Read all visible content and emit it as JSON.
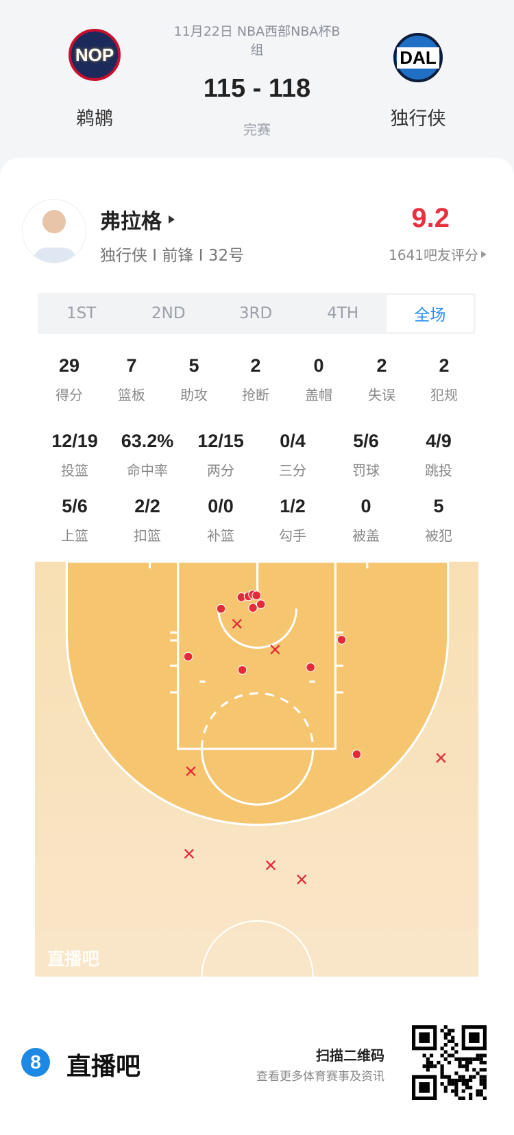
{
  "match": {
    "date_line1": "11月22日 NBA西部NBA杯B",
    "date_line2": "组",
    "score": "115 - 118",
    "status": "完赛",
    "home": {
      "abbr": "NOP",
      "name": "鹈鹕"
    },
    "away": {
      "abbr": "DAL",
      "name": "独行侠"
    }
  },
  "player": {
    "name": "弗拉格",
    "info": "独行侠 I 前锋 I 32号",
    "rating": "9.2",
    "rating_label": "1641吧友评分",
    "rating_color": "#e8303f"
  },
  "tabs": [
    {
      "label": "1ST"
    },
    {
      "label": "2ND"
    },
    {
      "label": "3RD"
    },
    {
      "label": "4TH"
    },
    {
      "label": "全场",
      "selected": true
    }
  ],
  "stats_row1": [
    {
      "v": "29",
      "l": "得分"
    },
    {
      "v": "7",
      "l": "篮板"
    },
    {
      "v": "5",
      "l": "助攻"
    },
    {
      "v": "2",
      "l": "抢断"
    },
    {
      "v": "0",
      "l": "盖帽"
    },
    {
      "v": "2",
      "l": "失误"
    },
    {
      "v": "2",
      "l": "犯规"
    }
  ],
  "stats_row2": [
    {
      "v": "12/19",
      "l": "投篮"
    },
    {
      "v": "63.2%",
      "l": "命中率"
    },
    {
      "v": "12/15",
      "l": "两分"
    },
    {
      "v": "0/4",
      "l": "三分"
    },
    {
      "v": "5/6",
      "l": "罚球"
    },
    {
      "v": "4/9",
      "l": "跳投"
    }
  ],
  "stats_row3": [
    {
      "v": "5/6",
      "l": "上篮"
    },
    {
      "v": "2/2",
      "l": "扣篮"
    },
    {
      "v": "0/0",
      "l": "补篮"
    },
    {
      "v": "1/2",
      "l": "勾手"
    },
    {
      "v": "0",
      "l": "被盖"
    },
    {
      "v": "5",
      "l": "被犯"
    }
  ],
  "shot_chart": {
    "watermark": "直播吧",
    "units": "feet (x from basket, y from baseline)",
    "made": [
      [
        -1.8,
        4.0
      ],
      [
        -1.0,
        3.9
      ],
      [
        -0.5,
        3.7
      ],
      [
        -0.1,
        3.8
      ],
      [
        -4.1,
        5.3
      ],
      [
        -0.5,
        5.2
      ],
      [
        0.4,
        4.8
      ],
      [
        -7.8,
        10.7
      ],
      [
        -1.7,
        12.2
      ],
      [
        6.0,
        11.9
      ],
      [
        9.5,
        8.8
      ],
      [
        11.2,
        21.7
      ]
    ],
    "missed": [
      [
        -2.3,
        7.0
      ],
      [
        2.0,
        9.9
      ],
      [
        -7.5,
        23.6
      ],
      [
        20.7,
        22.1
      ],
      [
        -7.7,
        32.9
      ],
      [
        1.5,
        34.2
      ],
      [
        5.0,
        35.8
      ]
    ],
    "shot_color": "#e32b3a"
  },
  "footer": {
    "brand": "直播吧",
    "brand_icon": "8",
    "scan_title": "扫描二维码",
    "scan_sub": "查看更多体育赛事及资讯"
  }
}
